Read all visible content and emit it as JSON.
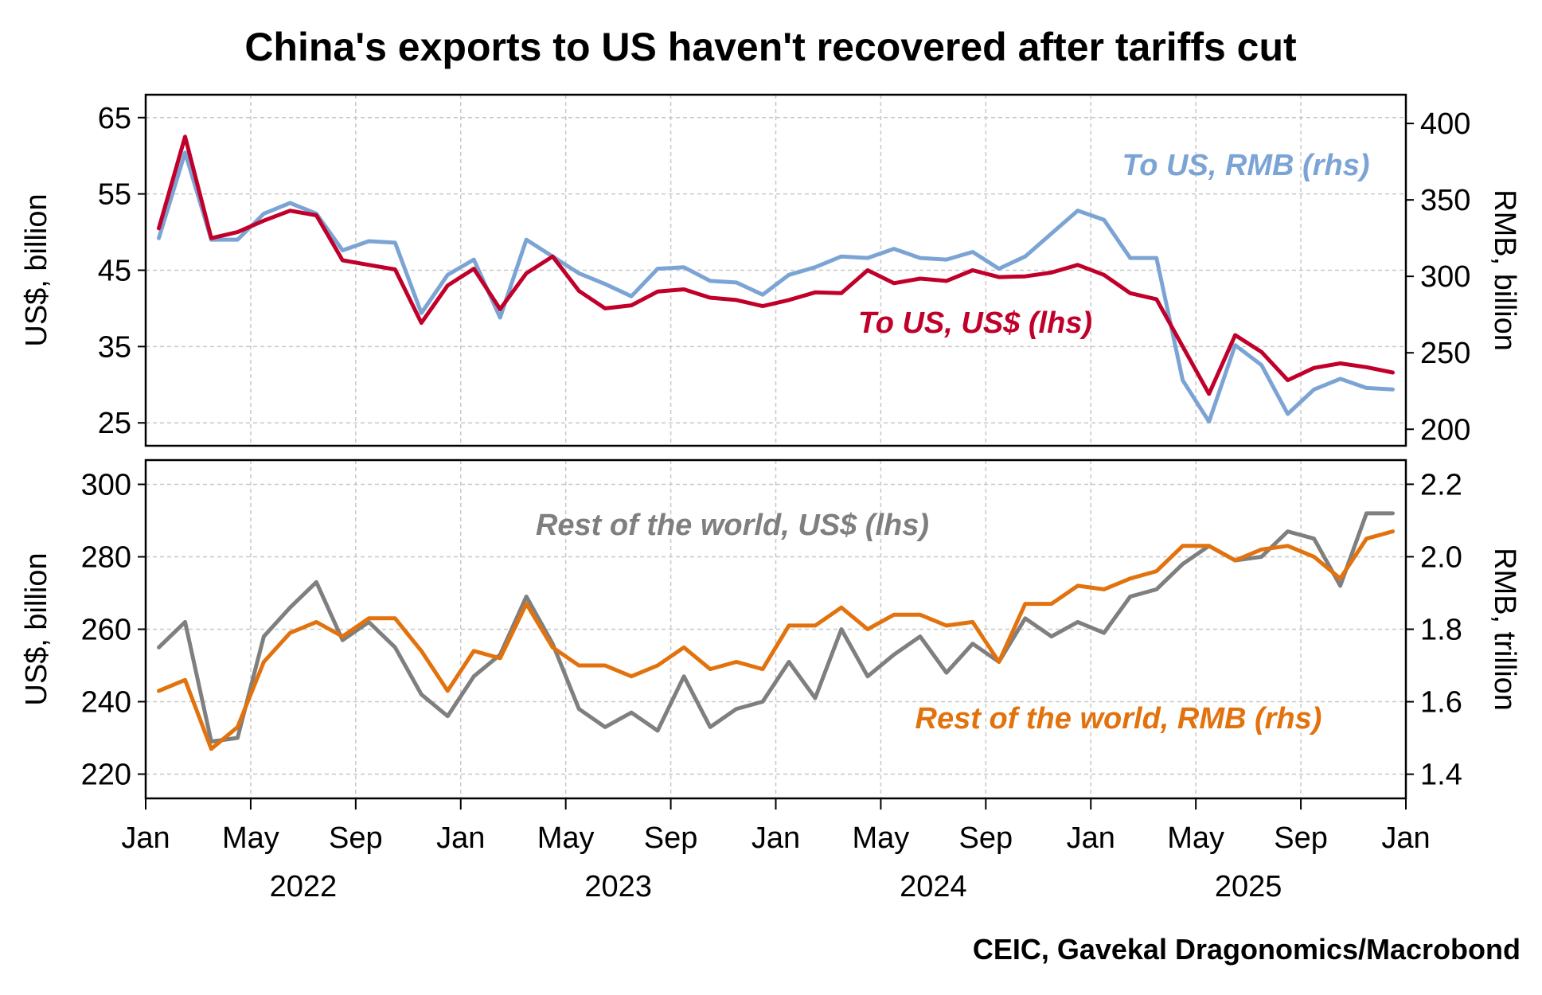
{
  "title": "China's exports to US haven't recovered after tariffs cut",
  "source": "CEIC, Gavekal Dragonomics/Macrobond",
  "x_axis": {
    "month_ticks": [
      "Jan",
      "May",
      "Sep",
      "Jan",
      "May",
      "Sep",
      "Jan",
      "May",
      "Sep",
      "Jan",
      "May",
      "Sep",
      "Jan"
    ],
    "year_labels": [
      "2022",
      "2023",
      "2024",
      "2025"
    ]
  },
  "chart_data": [
    {
      "type": "line",
      "x_start": "2022-01",
      "x_range": [
        "2022-01",
        "2026-01"
      ],
      "left_axis": {
        "label": "US$, billion",
        "ticks": [
          "65",
          "55",
          "45",
          "35",
          "25"
        ],
        "ylim": [
          22,
          68
        ]
      },
      "right_axis": {
        "label": "RMB, billion",
        "ticks": [
          "400",
          "350",
          "300",
          "250",
          "200"
        ],
        "ylim": [
          189.2,
          418.8
        ]
      },
      "grid": true,
      "series": [
        {
          "name": "To US, RMB (rhs)",
          "axis": "right",
          "color": "#7ba4d5",
          "values": [
            325,
            381,
            324,
            324,
            341,
            348,
            341,
            317,
            323,
            322,
            276,
            301,
            311,
            273,
            324,
            313,
            302,
            295,
            287,
            305,
            306,
            297,
            296,
            288,
            301,
            306,
            313,
            312,
            318,
            312,
            311,
            316,
            305,
            313,
            328,
            343,
            337,
            312,
            312,
            232,
            205,
            255,
            242,
            210,
            226,
            233,
            227,
            226
          ]
        },
        {
          "name": "To US, US$ (lhs)",
          "axis": "left",
          "color": "#c0002a",
          "values": [
            50.5,
            62.5,
            49.2,
            50.0,
            51.5,
            52.8,
            52.2,
            46.3,
            45.7,
            45.1,
            38.1,
            43.0,
            45.2,
            39.9,
            44.6,
            46.8,
            42.3,
            40.0,
            40.4,
            42.2,
            42.5,
            41.4,
            41.1,
            40.3,
            41.1,
            42.1,
            42.0,
            45.0,
            43.3,
            43.9,
            43.6,
            45.0,
            44.1,
            44.2,
            44.7,
            45.7,
            44.4,
            42.0,
            41.2,
            35.0,
            28.8,
            36.5,
            34.3,
            30.6,
            32.2,
            32.8,
            32.3,
            31.6
          ]
        }
      ]
    },
    {
      "type": "line",
      "x_start": "2022-01",
      "x_range": [
        "2022-01",
        "2026-01"
      ],
      "left_axis": {
        "label": "US$, billion",
        "ticks": [
          "300",
          "280",
          "260",
          "240",
          "220"
        ],
        "ylim": [
          213.3,
          306.7
        ]
      },
      "right_axis": {
        "label": "RMB, trillion",
        "ticks": [
          "2.2",
          "2.0",
          "1.8",
          "1.6",
          "1.4"
        ],
        "ylim": [
          1.3333,
          2.2667
        ]
      },
      "grid": true,
      "series": [
        {
          "name": "Rest of the world, US$ (lhs)",
          "axis": "left",
          "color": "#7f7f7f",
          "values": [
            255,
            262,
            229,
            230,
            258,
            266,
            273,
            257,
            262,
            255,
            242,
            236,
            247,
            253,
            269,
            256,
            238,
            233,
            237,
            232,
            247,
            233,
            238,
            240,
            251,
            241,
            260,
            247,
            253,
            258,
            248,
            256,
            251,
            263,
            258,
            262,
            259,
            269,
            271,
            278,
            283,
            279,
            280,
            287,
            285,
            272,
            292,
            292
          ]
        },
        {
          "name": "Rest of the world, RMB (rhs)",
          "axis": "right",
          "color": "#e2720e",
          "values": [
            1.63,
            1.66,
            1.47,
            1.53,
            1.71,
            1.79,
            1.82,
            1.78,
            1.83,
            1.83,
            1.74,
            1.63,
            1.74,
            1.72,
            1.87,
            1.75,
            1.7,
            1.7,
            1.67,
            1.7,
            1.75,
            1.69,
            1.71,
            1.69,
            1.81,
            1.81,
            1.86,
            1.8,
            1.84,
            1.84,
            1.81,
            1.82,
            1.71,
            1.87,
            1.87,
            1.92,
            1.91,
            1.94,
            1.96,
            2.03,
            2.03,
            1.99,
            2.02,
            2.03,
            2.0,
            1.94,
            2.05,
            2.07
          ]
        }
      ]
    }
  ]
}
